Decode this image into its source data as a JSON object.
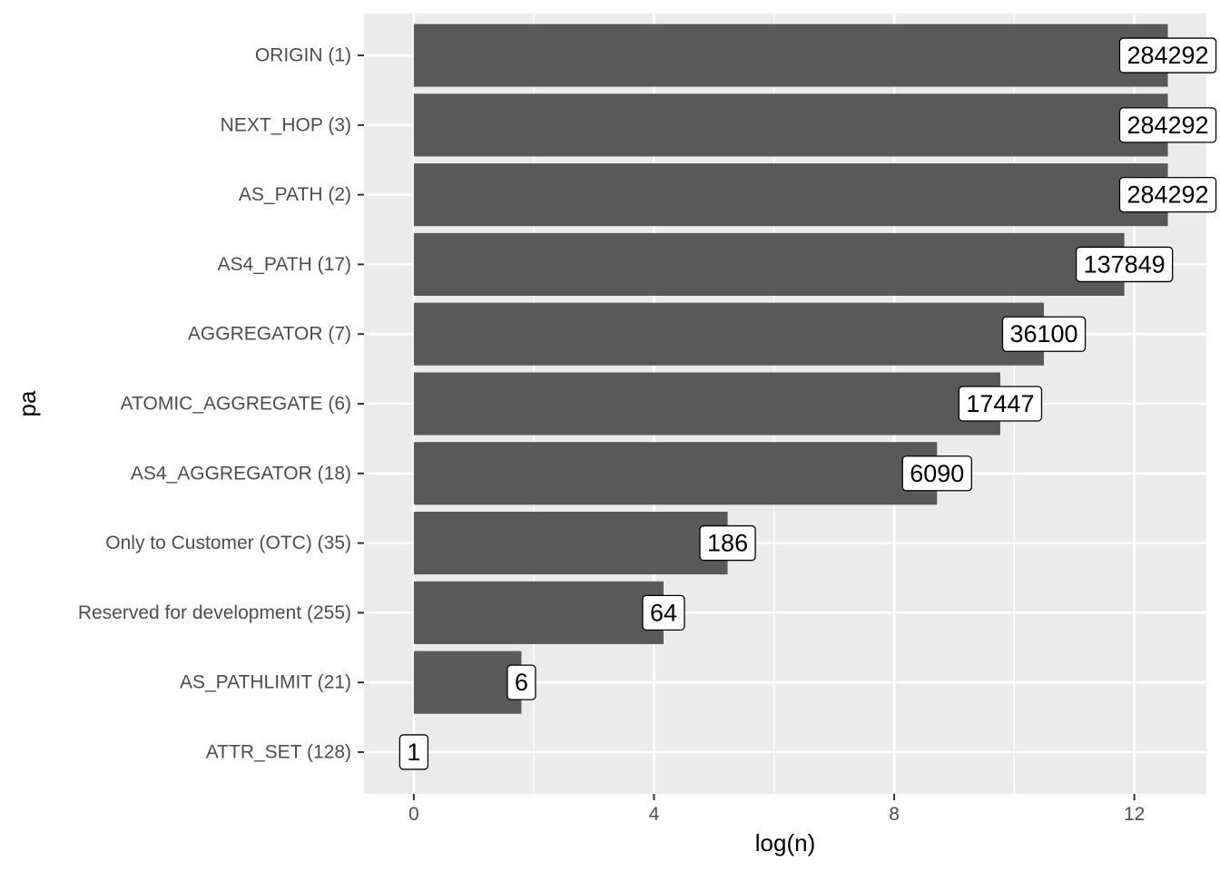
{
  "chart_data": {
    "type": "bar",
    "orientation": "horizontal",
    "xlabel": "log(n)",
    "ylabel": "pa",
    "xlim": [
      -0.83,
      13.2
    ],
    "x_ticks": [
      0,
      4,
      8,
      12
    ],
    "x_tick_labels": [
      "0",
      "4",
      "8",
      "12"
    ],
    "grid": true,
    "bar_color": "#595959",
    "panel_background": "#ebebeb",
    "categories": [
      "ORIGIN (1)",
      "NEXT_HOP (3)",
      "AS_PATH (2)",
      "AS4_PATH (17)",
      "AGGREGATOR (7)",
      "ATOMIC_AGGREGATE (6)",
      "AS4_AGGREGATOR (18)",
      "Only to Customer (OTC) (35)",
      "Reserved for development (255)",
      "AS_PATHLIMIT (21)",
      "ATTR_SET (128)"
    ],
    "values": [
      12.558,
      12.558,
      12.558,
      11.834,
      10.494,
      9.767,
      8.714,
      5.226,
      4.159,
      1.792,
      0
    ],
    "labels": [
      "284292",
      "284292",
      "284292",
      "137849",
      "36100",
      "17447",
      "6090",
      "186",
      "64",
      "6",
      "1"
    ]
  }
}
